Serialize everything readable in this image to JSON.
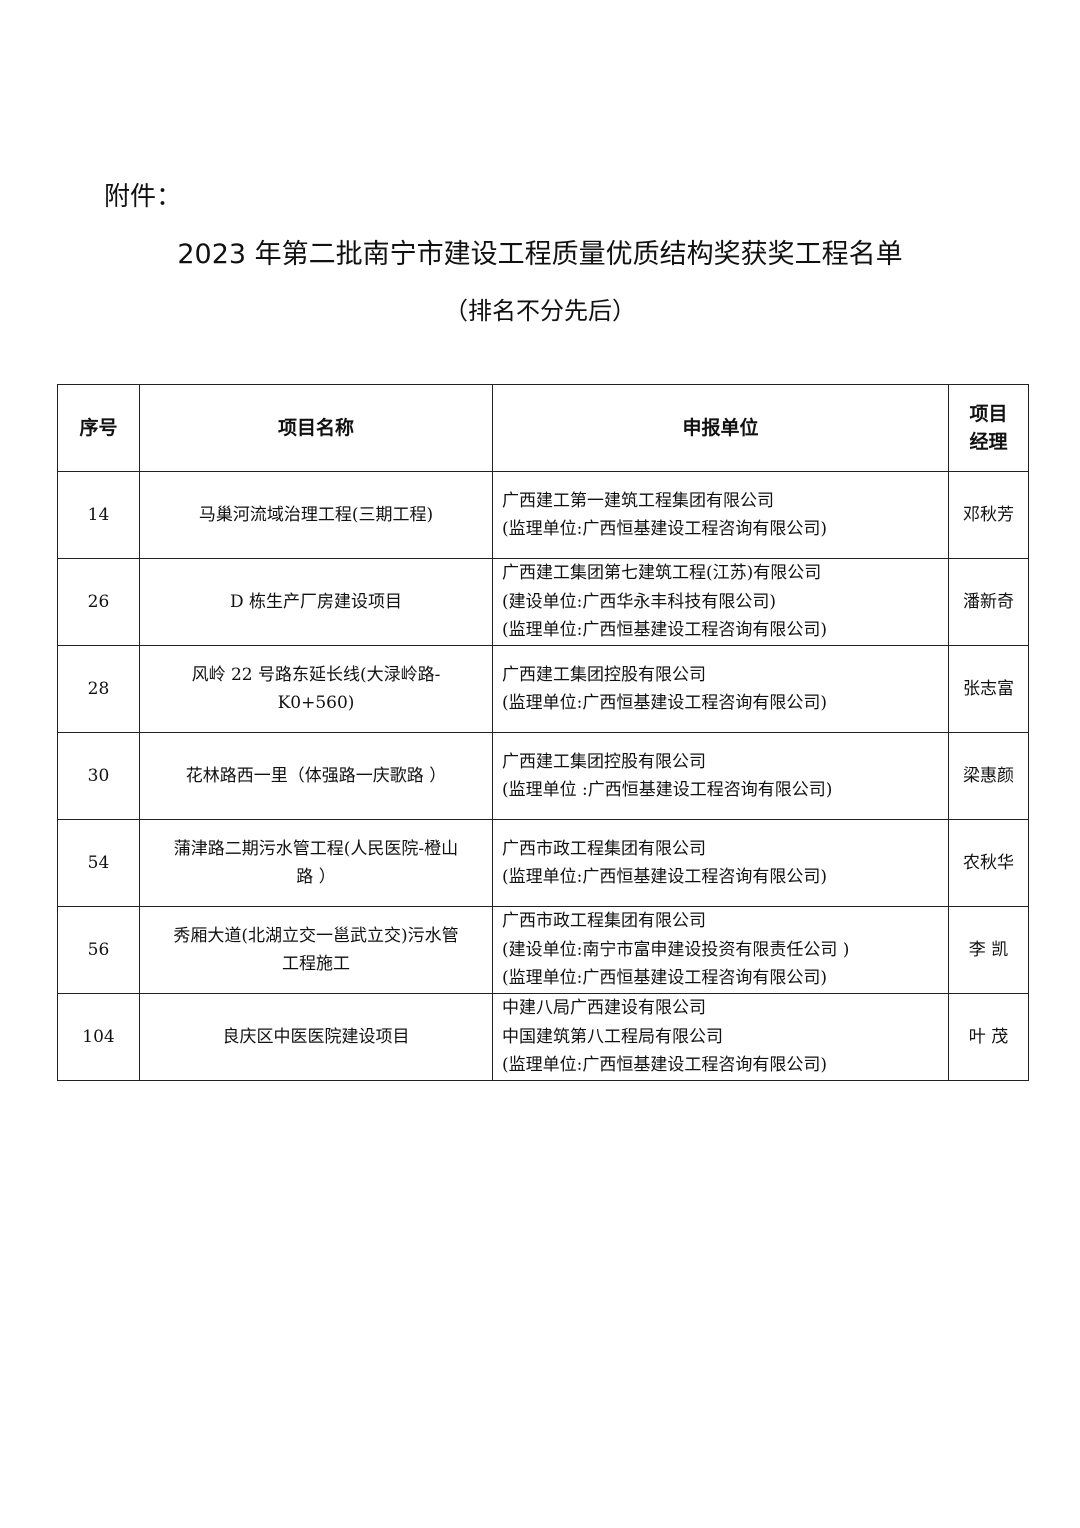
{
  "header": {
    "attachment_label": "附件：",
    "title": "2023 年第二批南宁市建设工程质量优质结构奖获奖工程名单",
    "subtitle": "（排名不分先后）"
  },
  "table": {
    "columns": [
      "序号",
      "项目名称",
      "申报单位",
      "项目经理"
    ],
    "manager_header_lines": [
      "项目",
      "经理"
    ],
    "rows": [
      {
        "no": "14",
        "name": [
          "马巢河流域治理工程(三期工程)"
        ],
        "units": [
          "广西建工第一建筑工程集团有限公司",
          "(监理单位:广西恒基建设工程咨询有限公司)"
        ],
        "manager": "邓秋芳"
      },
      {
        "no": "26",
        "name": [
          "D 栋生产厂房建设项目"
        ],
        "units": [
          "广西建工集团第七建筑工程(江苏)有限公司",
          "(建设单位:广西华永丰科技有限公司)",
          "(监理单位:广西恒基建设工程咨询有限公司)"
        ],
        "manager": "潘新奇"
      },
      {
        "no": "28",
        "name": [
          "风岭 22 号路东延长线(大渌岭路-",
          "K0+560)"
        ],
        "units": [
          "广西建工集团控股有限公司",
          "(监理单位:广西恒基建设工程咨询有限公司)"
        ],
        "manager": "张志富"
      },
      {
        "no": "30",
        "name": [
          "花林路西一里（体强路一庆歌路 ）"
        ],
        "units": [
          "广西建工集团控股有限公司",
          "(监理单位 :广西恒基建设工程咨询有限公司)"
        ],
        "manager": "梁惠颜"
      },
      {
        "no": "54",
        "name": [
          "蒲津路二期污水管工程(人民医院-橙山",
          "路 ）"
        ],
        "units": [
          "广西市政工程集团有限公司",
          "(监理单位:广西恒基建设工程咨询有限公司)"
        ],
        "manager": "农秋华"
      },
      {
        "no": "56",
        "name": [
          "秀厢大道(北湖立交一邕武立交)污水管",
          "工程施工"
        ],
        "units": [
          "广西市政工程集团有限公司",
          "(建设单位:南宁市富申建设投资有限责任公司 )",
          "(监理单位:广西恒基建设工程咨询有限公司)"
        ],
        "manager": "李 凯"
      },
      {
        "no": "104",
        "name": [
          "良庆区中医医院建设项目"
        ],
        "units": [
          "中建八局广西建设有限公司",
          "中国建筑第八工程局有限公司",
          "(监理单位:广西恒基建设工程咨询有限公司)"
        ],
        "manager": "叶 茂"
      }
    ]
  }
}
